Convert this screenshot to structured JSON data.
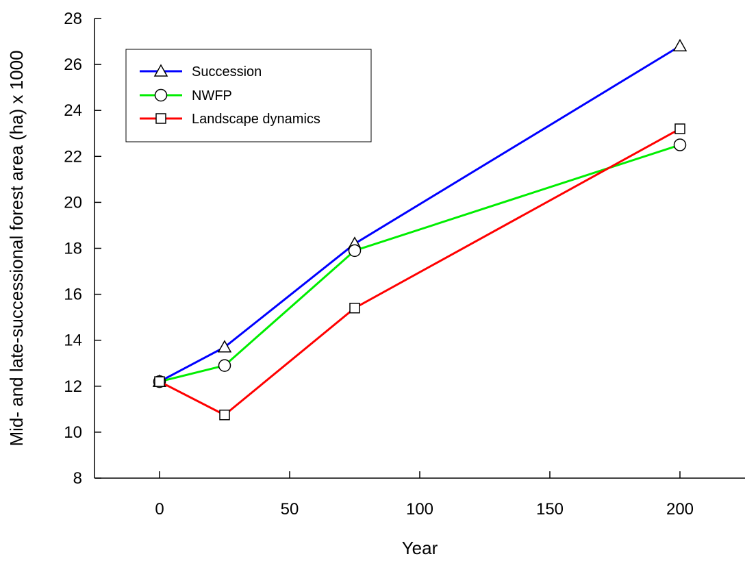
{
  "chart_data": {
    "type": "line",
    "title": "",
    "xlabel": "Year",
    "ylabel": "Mid- and late-successional forest area (ha) x 1000",
    "xlim": [
      -25,
      225
    ],
    "ylim": [
      8,
      28
    ],
    "xticks": [
      0,
      50,
      100,
      150,
      200
    ],
    "yticks": [
      8,
      10,
      12,
      14,
      16,
      18,
      20,
      22,
      24,
      26,
      28
    ],
    "grid": false,
    "legend_position": "top-left",
    "x": [
      0,
      25,
      75,
      200
    ],
    "series": [
      {
        "name": "Succession",
        "values": [
          12.2,
          13.7,
          18.2,
          26.8
        ],
        "color": "#0000ff",
        "marker": "triangle"
      },
      {
        "name": "NWFP",
        "values": [
          12.2,
          12.9,
          17.9,
          22.5
        ],
        "color": "#00ee00",
        "marker": "circle"
      },
      {
        "name": "Landscape dynamics",
        "values": [
          12.2,
          10.75,
          15.4,
          23.2
        ],
        "color": "#ff0000",
        "marker": "square"
      }
    ]
  }
}
